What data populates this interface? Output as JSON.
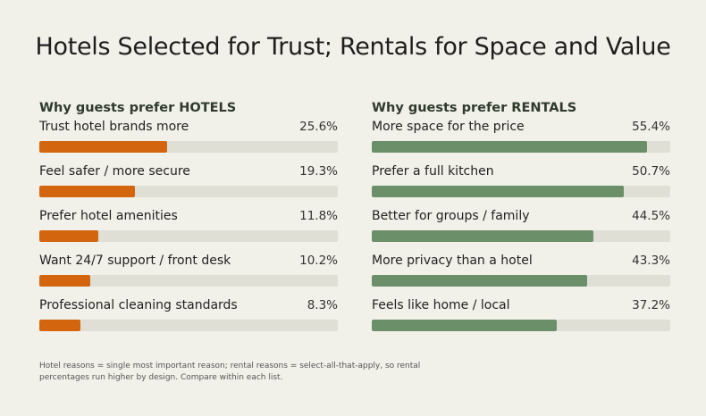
{
  "title": "Hotels Selected for Trust; Rentals for Space and Value",
  "colors": {
    "hotels": "#d2650e",
    "rentals": "#6b8f68",
    "track": "#e0dfd6",
    "background": "#f1f0e9"
  },
  "chart_data": [
    {
      "type": "bar",
      "orientation": "horizontal",
      "title": "Why guests prefer HOTELS",
      "categories": [
        "Trust hotel brands more",
        "Feel safer / more secure",
        "Prefer hotel amenities",
        "Want 24/7 support / front desk",
        "Professional cleaning standards"
      ],
      "values": [
        25.6,
        19.3,
        11.8,
        10.2,
        8.3
      ],
      "labels": [
        "25.6%",
        "19.3%",
        "11.8%",
        "10.2%",
        "8.3%"
      ],
      "unit": "%",
      "xlim": [
        0,
        60
      ]
    },
    {
      "type": "bar",
      "orientation": "horizontal",
      "title": "Why guests prefer RENTALS",
      "categories": [
        "More space for the price",
        "Prefer a full kitchen",
        "Better for groups / family",
        "More privacy than a hotel",
        "Feels like home / local"
      ],
      "values": [
        55.4,
        50.7,
        44.5,
        43.3,
        37.2
      ],
      "labels": [
        "55.4%",
        "50.7%",
        "44.5%",
        "43.3%",
        "37.2%"
      ],
      "unit": "%",
      "xlim": [
        0,
        60
      ]
    }
  ],
  "footnote": "Hotel reasons = single most important reason; rental reasons = select-all-that-apply, so rental percentages run higher by design. Compare within each list."
}
